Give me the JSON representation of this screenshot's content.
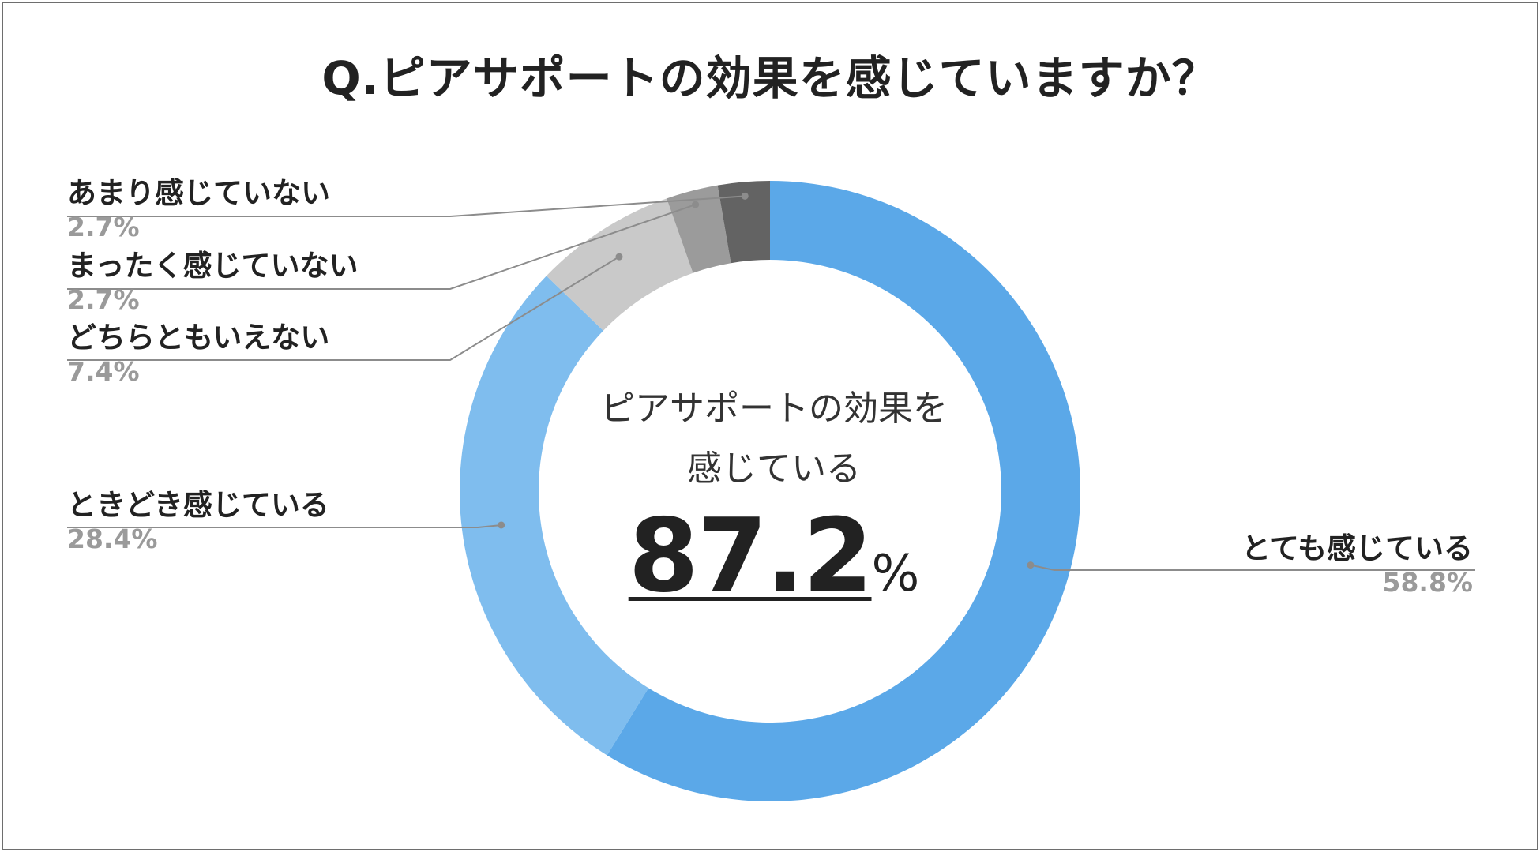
{
  "title": "Q.ピアサポートの効果を感じていますか？",
  "center": {
    "line1": "ピアサポートの効果を",
    "line2": "感じている",
    "value": "87.2",
    "unit": "%"
  },
  "chart_data": {
    "type": "pie",
    "style": "donut",
    "title": "Q.ピアサポートの効果を感じていますか？",
    "slices": [
      {
        "label": "とても感じている",
        "value": 58.8,
        "display": "58.8%",
        "color": "#5ba8e8"
      },
      {
        "label": "ときどき感じている",
        "value": 28.4,
        "display": "28.4%",
        "color": "#7fbdee"
      },
      {
        "label": "どちらともいえない",
        "value": 7.4,
        "display": "7.4%",
        "color": "#c9c9c9"
      },
      {
        "label": "まったく感じていない",
        "value": 2.7,
        "display": "2.7%",
        "color": "#9b9b9b"
      },
      {
        "label": "あまり感じていない",
        "value": 2.7,
        "display": "2.7%",
        "color": "#636363"
      }
    ],
    "start": "12 o'clock",
    "direction": "clockwise",
    "legend": "callout labels"
  },
  "colors": {
    "leader_line": "#8c8c8c",
    "title": "#222222",
    "percent": "#9a9a9a"
  }
}
